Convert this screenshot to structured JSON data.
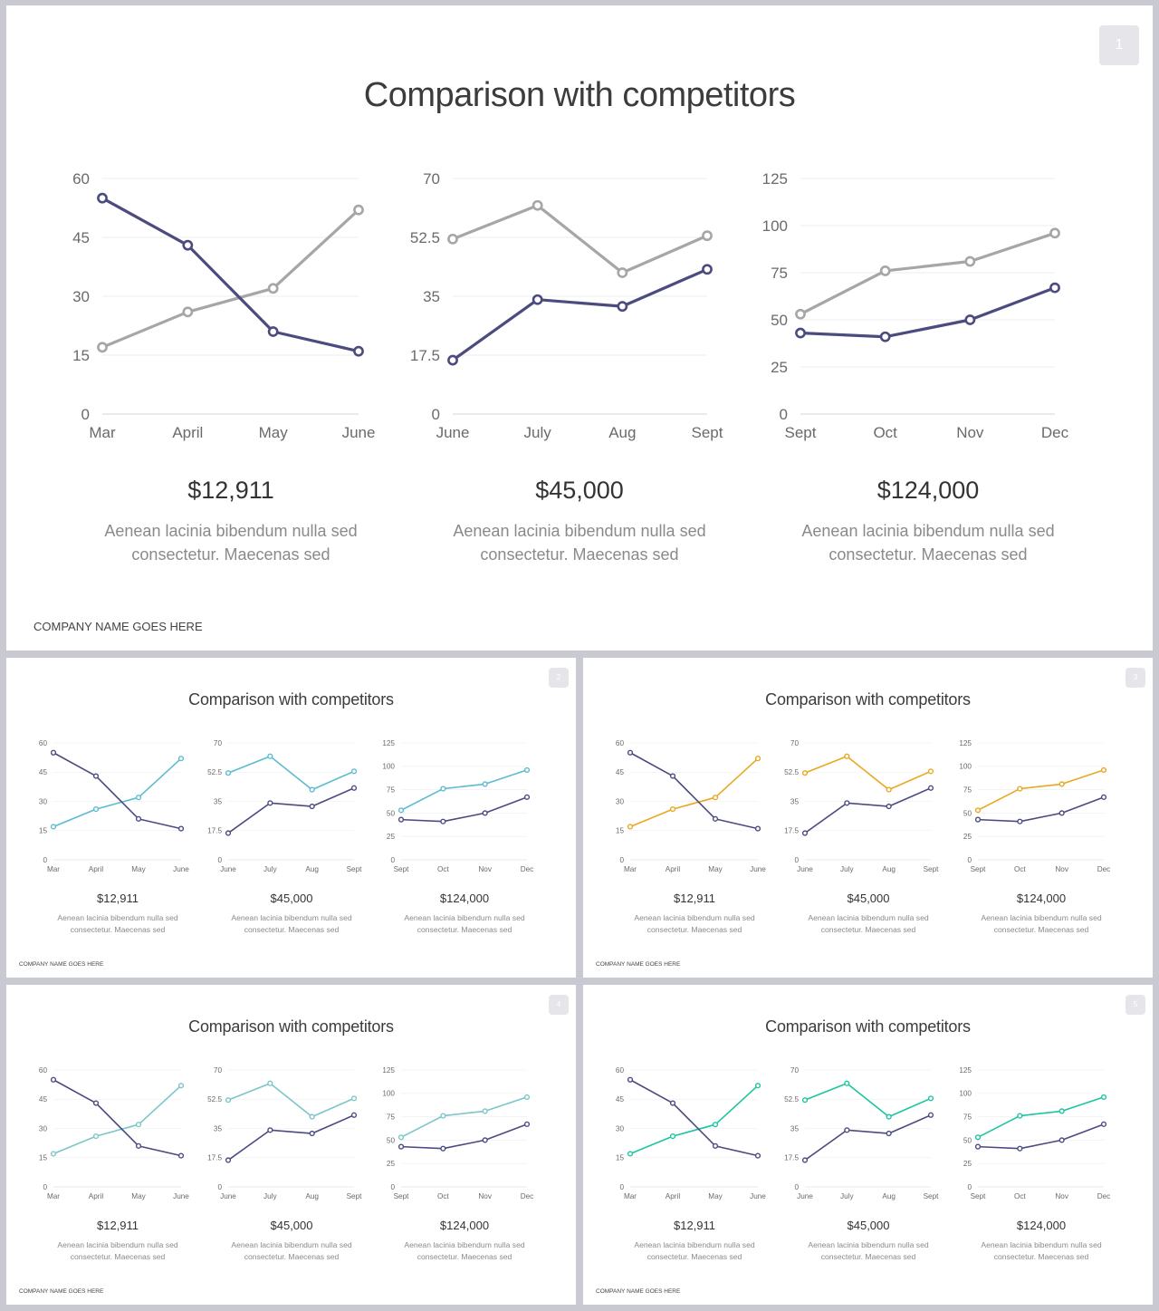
{
  "slides": [
    {
      "title": "Comparison with competitors",
      "page": "1",
      "company": "COMPANY NAME GOES HERE",
      "accent": "#a6a6a6",
      "size": "large"
    },
    {
      "title": "Comparison with competitors",
      "page": "2",
      "company": "COMPANY NAME GOES HERE",
      "accent": "#5bbcd0",
      "size": "small"
    },
    {
      "title": "Comparison with competitors",
      "page": "3",
      "company": "COMPANY NAME GOES HERE",
      "accent": "#e8a820",
      "size": "small"
    },
    {
      "title": "Comparison with competitors",
      "page": "4",
      "company": "COMPANY NAME GOES HERE",
      "accent": "#7cc5c8",
      "size": "small"
    },
    {
      "title": "Comparison with competitors",
      "page": "5",
      "company": "COMPANY NAME GOES HERE",
      "accent": "#1ec4a0",
      "size": "small"
    }
  ],
  "panels": [
    {
      "value": "$12,911",
      "desc_line1": "Aenean lacinia bibendum nulla sed",
      "desc_line2": "consectetur. Maecenas sed"
    },
    {
      "value": "$45,000",
      "desc_line1": "Aenean lacinia bibendum nulla sed",
      "desc_line2": "consectetur. Maecenas sed"
    },
    {
      "value": "$124,000",
      "desc_line1": "Aenean lacinia bibendum nulla sed",
      "desc_line2": "consectetur. Maecenas sed"
    }
  ],
  "primary_color": "#4b4b80",
  "chart_data": [
    {
      "type": "line",
      "categories": [
        "Mar",
        "April",
        "May",
        "June"
      ],
      "yticks": [
        "0",
        "15",
        "30",
        "45",
        "60"
      ],
      "ylim": [
        0,
        60
      ],
      "grid": true,
      "series": [
        {
          "values": [
            55,
            43,
            21,
            16
          ]
        },
        {
          "values": [
            17,
            26,
            32,
            52
          ]
        }
      ]
    },
    {
      "type": "line",
      "categories": [
        "June",
        "July",
        "Aug",
        "Sept"
      ],
      "yticks": [
        "0",
        "17.5",
        "35",
        "52.5",
        "70"
      ],
      "ylim": [
        0,
        70
      ],
      "grid": true,
      "series": [
        {
          "values": [
            16,
            34,
            32,
            43
          ]
        },
        {
          "values": [
            52,
            62,
            42,
            53
          ]
        }
      ]
    },
    {
      "type": "line",
      "categories": [
        "Sept",
        "Oct",
        "Nov",
        "Dec"
      ],
      "yticks": [
        "0",
        "25",
        "50",
        "75",
        "100",
        "125"
      ],
      "ylim": [
        0,
        125
      ],
      "grid": true,
      "series": [
        {
          "values": [
            43,
            41,
            50,
            67
          ]
        },
        {
          "values": [
            53,
            76,
            81,
            96
          ]
        }
      ]
    }
  ]
}
